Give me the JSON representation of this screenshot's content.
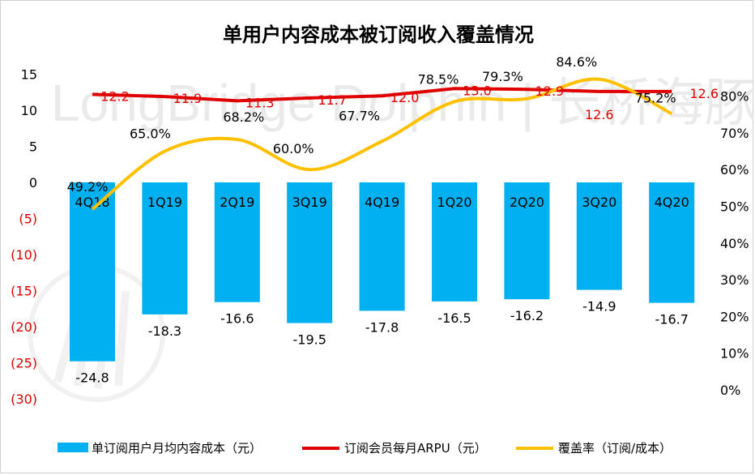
{
  "chart_data": {
    "type": "bar+line",
    "title": "单用户内容成本被订阅收入覆盖情况",
    "watermark": "LongBridge Dolphin | 长桥海豚投研",
    "categories": [
      "4Q18",
      "1Q19",
      "2Q19",
      "3Q19",
      "4Q19",
      "1Q20",
      "2Q20",
      "3Q20",
      "4Q20"
    ],
    "left_axis": {
      "ticks": [
        15,
        10,
        5,
        0,
        -5,
        -10,
        -15,
        -20,
        -25,
        -30
      ],
      "tick_labels": [
        "15",
        "10",
        "5",
        "0",
        "(5)",
        "(10)",
        "(15)",
        "(20)",
        "(25)",
        "(30)"
      ],
      "range": [
        -30,
        15
      ],
      "negative_color": "#e00000"
    },
    "right_axis": {
      "ticks": [
        0,
        10,
        20,
        30,
        40,
        50,
        60,
        70,
        80
      ],
      "tick_labels": [
        "0%",
        "10%",
        "20%",
        "30%",
        "40%",
        "50%",
        "60%",
        "70%",
        "80%"
      ],
      "range": [
        0,
        100
      ],
      "unit": "%"
    },
    "series": [
      {
        "name": "单订阅用户月均内容成本（元）",
        "type": "bar",
        "axis": "left",
        "color": "#00b0f0",
        "values": [
          -24.8,
          -18.3,
          -16.6,
          -19.5,
          -17.8,
          -16.5,
          -16.2,
          -14.9,
          -16.7
        ],
        "labels": [
          "-24.8",
          "-18.3",
          "-16.6",
          "-19.5",
          "-17.8",
          "-16.5",
          "-16.2",
          "-14.9",
          "-16.7"
        ]
      },
      {
        "name": "订阅会员每月ARPU（元）",
        "type": "line",
        "axis": "left",
        "color": "#e00000",
        "values": [
          12.2,
          11.9,
          11.3,
          11.7,
          12.0,
          13.0,
          12.9,
          12.6,
          12.6
        ],
        "labels": [
          "12.2",
          "11.9",
          "11.3",
          "11.7",
          "12.0",
          "13.0",
          "12.9",
          "12.6",
          "12.6"
        ]
      },
      {
        "name": "覆盖率（订阅/成本）",
        "type": "line",
        "smooth": true,
        "axis": "right",
        "color": "#ffc000",
        "values": [
          49.2,
          65.0,
          68.2,
          60.0,
          67.7,
          78.5,
          79.3,
          84.6,
          75.2
        ],
        "labels": [
          "49.2%",
          "65.0%",
          "68.2%",
          "60.0%",
          "67.7%",
          "78.5%",
          "79.3%",
          "84.6%",
          "75.2%"
        ]
      }
    ],
    "legend_position": "bottom"
  }
}
